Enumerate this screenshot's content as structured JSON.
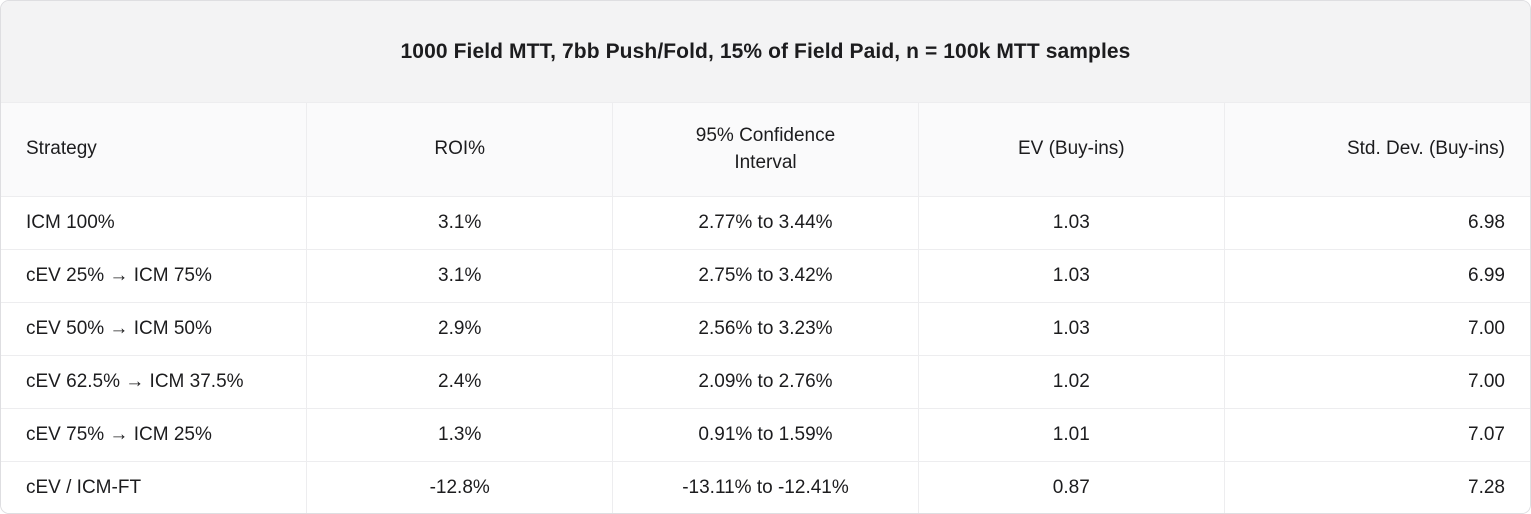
{
  "chart_data": {
    "type": "table",
    "title": "1000 Field MTT, 7bb Push/Fold, 15% of Field Paid, n = 100k MTT samples",
    "columns": [
      {
        "label": "Strategy",
        "align": "left"
      },
      {
        "label": "ROI%",
        "align": "center"
      },
      {
        "label": "95% Confidence\nInterval",
        "align": "center"
      },
      {
        "label": "EV (Buy-ins)",
        "align": "center"
      },
      {
        "label": "Std. Dev. (Buy-ins)",
        "align": "right"
      }
    ],
    "rows": [
      [
        "ICM 100%",
        "3.1%",
        "2.77% to 3.44%",
        "1.03",
        "6.98"
      ],
      [
        "cEV 25% → ICM 75%",
        "3.1%",
        "2.75% to 3.42%",
        "1.03",
        "6.99"
      ],
      [
        "cEV 50% → ICM 50%",
        "2.9%",
        "2.56% to 3.23%",
        "1.03",
        "7.00"
      ],
      [
        "cEV 62.5% → ICM 37.5%",
        "2.4%",
        "2.09% to 2.76%",
        "1.02",
        "7.00"
      ],
      [
        "cEV 75% → ICM 25%",
        "1.3%",
        "0.91% to 1.59%",
        "1.01",
        "7.07"
      ],
      [
        "cEV / ICM-FT",
        "-12.8%",
        "-13.11% to -12.41%",
        "0.87",
        "7.28"
      ]
    ],
    "layout": {
      "grid": "on",
      "column_count": 5,
      "row_count": 6
    },
    "colors": {
      "title_band_bg": "#f3f3f4",
      "header_bg": "#fafafb",
      "row_bg": "#ffffff",
      "grid_line": "#ededef",
      "card_border": "#dedee1",
      "text": "#1c1c1e"
    }
  }
}
